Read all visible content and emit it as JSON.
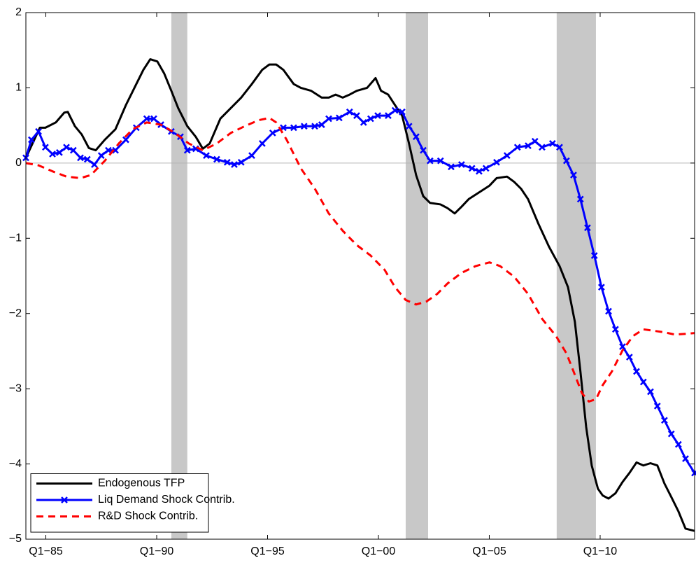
{
  "chart_data": {
    "type": "line",
    "xlim": [
      1984.1,
      2014.26
    ],
    "xticks": [
      {
        "value": 1985,
        "label": "Q1−85"
      },
      {
        "value": 1990,
        "label": "Q1−90"
      },
      {
        "value": 1995,
        "label": "Q1−95"
      },
      {
        "value": 2000,
        "label": "Q1−00"
      },
      {
        "value": 2005,
        "label": "Q1−05"
      },
      {
        "value": 2010,
        "label": "Q1−10"
      }
    ],
    "ylim": [
      -5,
      2
    ],
    "yticks": [
      {
        "value": -5,
        "label": "−5"
      },
      {
        "value": -4,
        "label": "−4"
      },
      {
        "value": -3,
        "label": "−3"
      },
      {
        "value": -2,
        "label": "−2"
      },
      {
        "value": -1,
        "label": "−1"
      },
      0,
      1,
      2
    ],
    "zero_line": true,
    "legend": "lower left",
    "shaded_periods": [
      [
        1990.66,
        1991.38
      ],
      [
        2001.23,
        2002.24
      ],
      [
        2008.04,
        2009.81
      ]
    ],
    "shade_color": "#c8c8c8",
    "series": [
      {
        "name": "Endogenous TFP",
        "color": "#000000",
        "style": "solid",
        "x": [
          1984.1,
          1984.73,
          1984.98,
          1985.45,
          1985.83,
          1985.99,
          1986.31,
          1986.62,
          1986.94,
          1987.25,
          1987.66,
          1988.14,
          1988.61,
          1989.08,
          1989.4,
          1989.71,
          1990.03,
          1990.34,
          1990.66,
          1990.97,
          1991.38,
          1991.76,
          1992.08,
          1992.39,
          1992.87,
          1993.34,
          1993.81,
          1994.29,
          1994.76,
          1995.08,
          1995.39,
          1995.71,
          1996.18,
          1996.5,
          1996.97,
          1997.44,
          1997.76,
          1998.07,
          1998.39,
          1998.7,
          1999.02,
          1999.49,
          1999.87,
          2000.12,
          2000.44,
          2000.75,
          2001.07,
          2001.38,
          2001.7,
          2002.02,
          2002.33,
          2002.8,
          2003.12,
          2003.44,
          2003.75,
          2004.07,
          2004.54,
          2005.01,
          2005.33,
          2005.8,
          2006.12,
          2006.43,
          2006.75,
          2007.22,
          2007.69,
          2008.17,
          2008.55,
          2008.86,
          2009.11,
          2009.37,
          2009.62,
          2009.9,
          2010.12,
          2010.38,
          2010.69,
          2011.01,
          2011.32,
          2011.64,
          2011.95,
          2012.27,
          2012.58,
          2012.9,
          2013.21,
          2013.53,
          2013.85,
          2014.26
        ],
        "values": [
          0.07,
          0.47,
          0.47,
          0.54,
          0.67,
          0.68,
          0.49,
          0.38,
          0.2,
          0.17,
          0.31,
          0.45,
          0.77,
          1.05,
          1.24,
          1.38,
          1.35,
          1.19,
          0.96,
          0.73,
          0.49,
          0.35,
          0.19,
          0.26,
          0.59,
          0.73,
          0.87,
          1.05,
          1.24,
          1.31,
          1.31,
          1.24,
          1.05,
          1.0,
          0.96,
          0.87,
          0.87,
          0.91,
          0.87,
          0.91,
          0.96,
          1.0,
          1.13,
          0.96,
          0.91,
          0.77,
          0.63,
          0.26,
          -0.16,
          -0.44,
          -0.53,
          -0.55,
          -0.6,
          -0.67,
          -0.58,
          -0.48,
          -0.39,
          -0.3,
          -0.2,
          -0.18,
          -0.25,
          -0.34,
          -0.48,
          -0.81,
          -1.11,
          -1.37,
          -1.65,
          -2.11,
          -2.77,
          -3.51,
          -4.02,
          -4.33,
          -4.42,
          -4.46,
          -4.39,
          -4.24,
          -4.12,
          -3.98,
          -4.02,
          -3.99,
          -4.02,
          -4.26,
          -4.44,
          -4.63,
          -4.86,
          -4.89
        ]
      },
      {
        "name": "Liq Demand Shock Contrib.",
        "color": "#0000ff",
        "style": "solid",
        "marker": "x",
        "x": [
          1984.1,
          1984.35,
          1984.67,
          1984.98,
          1985.3,
          1985.61,
          1985.93,
          1986.24,
          1986.56,
          1986.87,
          1987.19,
          1987.5,
          1987.82,
          1988.14,
          1988.61,
          1989.08,
          1989.55,
          1989.87,
          1990.19,
          1990.66,
          1991.07,
          1991.38,
          1991.76,
          1992.24,
          1992.71,
          1993.18,
          1993.5,
          1993.81,
          1994.29,
          1994.76,
          1995.23,
          1995.71,
          1996.18,
          1996.65,
          1997.13,
          1997.44,
          1997.76,
          1998.23,
          1998.7,
          1999.02,
          1999.33,
          1999.65,
          1999.97,
          2000.44,
          2000.75,
          2001.07,
          2001.38,
          2001.7,
          2002.02,
          2002.33,
          2002.8,
          2003.28,
          2003.75,
          2004.22,
          2004.54,
          2004.85,
          2005.33,
          2005.8,
          2006.27,
          2006.75,
          2007.06,
          2007.38,
          2007.85,
          2008.17,
          2008.48,
          2008.8,
          2009.11,
          2009.43,
          2009.74,
          2010.06,
          2010.38,
          2010.69,
          2011.01,
          2011.32,
          2011.64,
          2011.95,
          2012.27,
          2012.58,
          2012.9,
          2013.21,
          2013.53,
          2013.85,
          2014.26
        ],
        "values": [
          0.07,
          0.31,
          0.42,
          0.21,
          0.12,
          0.14,
          0.21,
          0.17,
          0.07,
          0.05,
          -0.02,
          0.1,
          0.17,
          0.17,
          0.31,
          0.47,
          0.59,
          0.59,
          0.51,
          0.42,
          0.35,
          0.17,
          0.19,
          0.1,
          0.05,
          0.01,
          -0.02,
          0.01,
          0.1,
          0.26,
          0.4,
          0.47,
          0.47,
          0.49,
          0.49,
          0.51,
          0.59,
          0.6,
          0.68,
          0.63,
          0.54,
          0.59,
          0.63,
          0.63,
          0.7,
          0.68,
          0.49,
          0.35,
          0.17,
          0.03,
          0.03,
          -0.05,
          -0.02,
          -0.07,
          -0.11,
          -0.07,
          0.01,
          0.1,
          0.21,
          0.23,
          0.29,
          0.21,
          0.26,
          0.21,
          0.03,
          -0.16,
          -0.48,
          -0.86,
          -1.23,
          -1.65,
          -1.97,
          -2.21,
          -2.44,
          -2.58,
          -2.77,
          -2.91,
          -3.04,
          -3.23,
          -3.42,
          -3.6,
          -3.74,
          -3.93,
          -4.12
        ]
      },
      {
        "name": "R&D Shock Contrib.",
        "color": "#ff0000",
        "style": "dashed",
        "x": [
          1984.1,
          1984.67,
          1985.3,
          1985.93,
          1986.56,
          1987.03,
          1987.66,
          1988.29,
          1988.92,
          1989.55,
          1990.19,
          1990.82,
          1991.45,
          1992.08,
          1992.71,
          1993.34,
          1993.97,
          1994.6,
          1995.08,
          1995.39,
          1995.86,
          1996.5,
          1997.13,
          1997.76,
          1998.39,
          1999.02,
          1999.65,
          2000.28,
          2000.75,
          2001.23,
          2001.7,
          2002.17,
          2002.65,
          2003.12,
          2003.75,
          2004.38,
          2005.01,
          2005.49,
          2006.12,
          2006.75,
          2007.38,
          2008.01,
          2008.48,
          2008.8,
          2009.18,
          2009.49,
          2009.81,
          2010.12,
          2010.53,
          2011.01,
          2011.48,
          2011.95,
          2012.43,
          2012.9,
          2013.37,
          2013.85,
          2014.26
        ],
        "values": [
          0,
          -0.03,
          -0.11,
          -0.18,
          -0.2,
          -0.16,
          0.03,
          0.26,
          0.45,
          0.54,
          0.51,
          0.4,
          0.26,
          0.17,
          0.26,
          0.4,
          0.49,
          0.57,
          0.6,
          0.54,
          0.31,
          -0.07,
          -0.34,
          -0.67,
          -0.9,
          -1.09,
          -1.23,
          -1.42,
          -1.65,
          -1.82,
          -1.88,
          -1.84,
          -1.74,
          -1.6,
          -1.46,
          -1.37,
          -1.32,
          -1.37,
          -1.51,
          -1.74,
          -2.07,
          -2.3,
          -2.53,
          -2.77,
          -3.06,
          -3.17,
          -3.14,
          -2.95,
          -2.77,
          -2.49,
          -2.3,
          -2.21,
          -2.23,
          -2.25,
          -2.28,
          -2.27,
          -2.26
        ]
      }
    ]
  }
}
